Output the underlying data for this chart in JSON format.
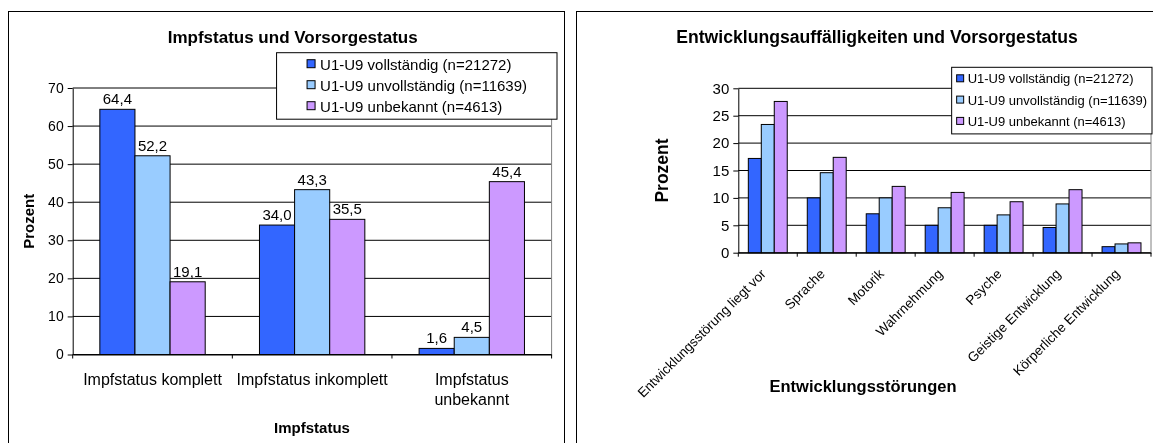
{
  "chart_data": [
    {
      "type": "bar",
      "title": "Impfstatus und Vorsorgestatus",
      "xlabel": "Impfstatus",
      "ylabel": "Prozent",
      "categories": [
        "Impfstatus komplett",
        "Impfstatus inkomplett",
        "Impfstatus unbekannt"
      ],
      "series": [
        {
          "name": "U1-U9 vollständig (n=21272)",
          "color": "#3366ff",
          "values": [
            64.4,
            34.0,
            1.6
          ],
          "value_labels": [
            "64,4",
            "34,0",
            "1,6"
          ]
        },
        {
          "name": "U1-U9 unvollständig (n=11639)",
          "color": "#99ccff",
          "values": [
            52.2,
            43.3,
            4.5
          ],
          "value_labels": [
            "52,2",
            "43,3",
            "4,5"
          ]
        },
        {
          "name": "U1-U9 unbekannt (n=4613)",
          "color": "#cc99ff",
          "values": [
            19.1,
            35.5,
            45.4
          ],
          "value_labels": [
            "19,1",
            "35,5",
            "45,4"
          ]
        }
      ],
      "ylim": [
        0,
        70
      ],
      "yticks": [
        0,
        10,
        20,
        30,
        40,
        50,
        60,
        70
      ],
      "grid": "y",
      "legend": "top right"
    },
    {
      "type": "bar",
      "title": "Entwicklungsauffälligkeiten und Vorsorgestatus",
      "xlabel": "Entwicklungsstörungen",
      "ylabel": "Prozent",
      "categories": [
        "Entwicklungsstörung liegt vor",
        "Sprache",
        "Motorik",
        "Wahrnehmung",
        "Psyche",
        "Geistige Entwicklung",
        "Körperliche Entwicklung"
      ],
      "series": [
        {
          "name": "U1-U9 vollständig (n=21272)",
          "color": "#3366ff",
          "values": [
            17.2,
            10.0,
            7.1,
            5.0,
            5.0,
            4.6,
            1.1
          ]
        },
        {
          "name": "U1-U9 unvollständig (n=11639)",
          "color": "#99ccff",
          "values": [
            23.4,
            14.6,
            10.0,
            8.2,
            6.9,
            8.9,
            1.6
          ]
        },
        {
          "name": "U1-U9 unbekannt (n=4613)",
          "color": "#cc99ff",
          "values": [
            27.6,
            17.4,
            12.1,
            11.0,
            9.3,
            11.5,
            1.8
          ]
        }
      ],
      "ylim": [
        0,
        30
      ],
      "yticks": [
        0,
        5,
        10,
        15,
        20,
        25,
        30
      ],
      "grid": "y",
      "legend": "top right"
    }
  ]
}
